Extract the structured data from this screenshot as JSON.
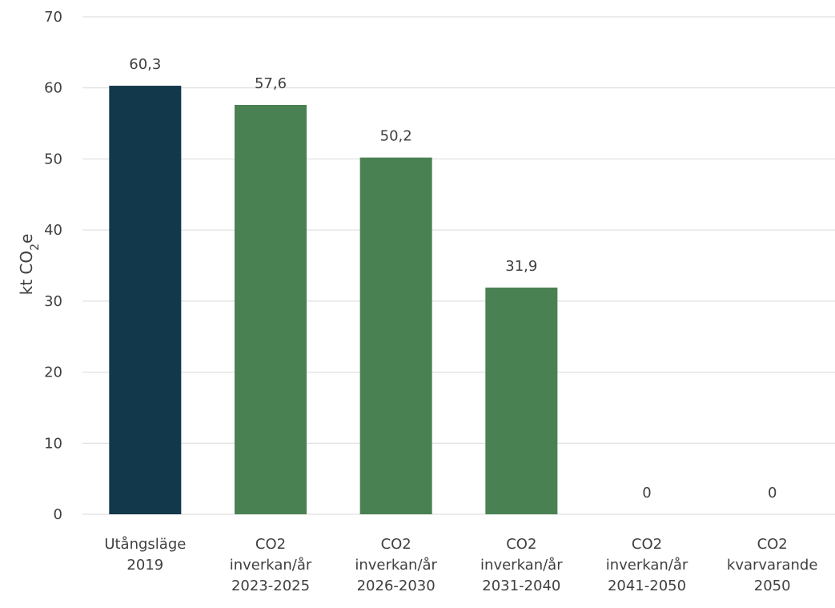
{
  "chart_data": {
    "type": "bar",
    "ylabel": {
      "prefix": "kt CO",
      "subscript": "2",
      "suffix": "e"
    },
    "ylim": [
      0,
      70
    ],
    "yticks": [
      0,
      10,
      20,
      30,
      40,
      50,
      60,
      70
    ],
    "grid": true,
    "categories": [
      [
        "Utångsläge",
        "2019"
      ],
      [
        "CO2",
        "inverkan/år",
        "2023-2025"
      ],
      [
        "CO2",
        "inverkan/år",
        "2026-2030"
      ],
      [
        "CO2",
        "inverkan/år",
        "2031-2040"
      ],
      [
        "CO2",
        "inverkan/år",
        "2041-2050"
      ],
      [
        "CO2",
        "kvarvarande",
        "2050"
      ]
    ],
    "values": [
      60.3,
      57.6,
      50.2,
      31.9,
      0,
      0
    ],
    "data_labels": [
      "60,3",
      "57,6",
      "50,2",
      "31,9",
      "0",
      "0"
    ],
    "colors": [
      "#12394b",
      "#4a8153",
      "#4a8153",
      "#4a8153",
      "#4a8153",
      "#4a8153"
    ],
    "grid_color": "#d9d9d9"
  }
}
